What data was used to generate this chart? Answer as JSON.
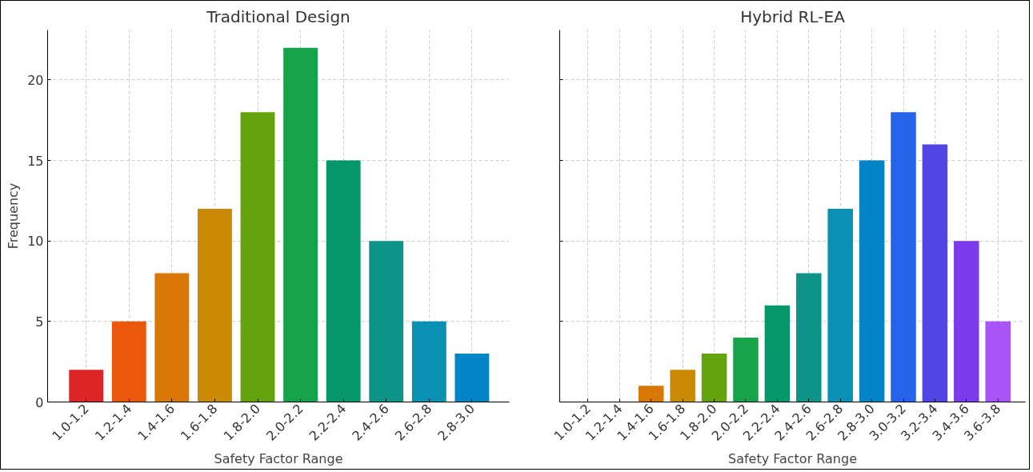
{
  "chart_data": [
    {
      "type": "bar",
      "title": "Traditional Design",
      "xlabel": "Safety Factor Range",
      "ylabel": "Frequency",
      "categories": [
        "1.0-1.2",
        "1.2-1.4",
        "1.4-1.6",
        "1.6-1.8",
        "1.8-2.0",
        "2.0-2.2",
        "2.2-2.4",
        "2.4-2.6",
        "2.6-2.8",
        "2.8-3.0"
      ],
      "values": [
        2,
        5,
        8,
        12,
        18,
        22,
        15,
        10,
        5,
        3
      ],
      "colors": [
        "#dc2626",
        "#ea580c",
        "#d97706",
        "#ca8a04",
        "#65a30d",
        "#16a34a",
        "#059669",
        "#0d9488",
        "#0891b2",
        "#0284c7"
      ],
      "ylim": [
        0,
        23.1
      ],
      "yticks": [
        0,
        5,
        10,
        15,
        20
      ],
      "grid": true
    },
    {
      "type": "bar",
      "title": "Hybrid RL-EA",
      "xlabel": "Safety Factor Range",
      "categories": [
        "1.0-1.2",
        "1.2-1.4",
        "1.4-1.6",
        "1.6-1.8",
        "1.8-2.0",
        "2.0-2.2",
        "2.2-2.4",
        "2.4-2.6",
        "2.6-2.8",
        "2.8-3.0",
        "3.0-3.2",
        "3.2-3.4",
        "3.4-3.6",
        "3.6-3.8"
      ],
      "values": [
        0,
        0,
        1,
        2,
        3,
        4,
        6,
        8,
        12,
        15,
        18,
        16,
        10,
        5
      ],
      "colors": [
        "#dc2626",
        "#ea580c",
        "#d97706",
        "#ca8a04",
        "#65a30d",
        "#16a34a",
        "#059669",
        "#0d9488",
        "#0891b2",
        "#0284c7",
        "#2563eb",
        "#4f46e5",
        "#7c3aed",
        "#a855f7"
      ],
      "ylim": [
        0,
        23.1
      ],
      "yticks": [
        0,
        5,
        10,
        15,
        20
      ],
      "grid": true,
      "tick_labels": "x"
    }
  ]
}
